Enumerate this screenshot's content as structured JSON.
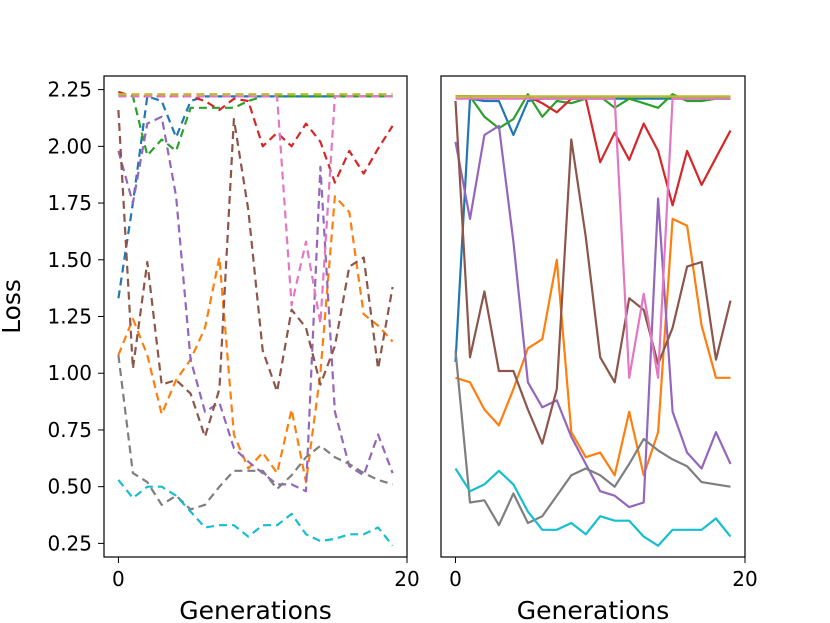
{
  "chart_data": {
    "type": "line",
    "ylabel": "Loss",
    "xlim": [
      -1,
      20
    ],
    "ylim": [
      0.19,
      2.31
    ],
    "yticks": [
      "0.25",
      "0.50",
      "0.75",
      "1.00",
      "1.25",
      "1.50",
      "1.75",
      "2.00",
      "2.25"
    ],
    "ytick_values": [
      0.25,
      0.5,
      0.75,
      1.0,
      1.25,
      1.5,
      1.75,
      2.0,
      2.25
    ],
    "xticks": [
      "0",
      "20"
    ],
    "xtick_values": [
      0,
      20
    ],
    "x": [
      0,
      1,
      2,
      3,
      4,
      5,
      6,
      7,
      8,
      9,
      10,
      11,
      12,
      13,
      14,
      15,
      16,
      17,
      18,
      19
    ],
    "panels": [
      {
        "xlabel": "Generations",
        "line_style": "dashed",
        "show_yticks": true,
        "series": [
          {
            "color": "#1f77b4",
            "values": [
              1.33,
              1.75,
              2.22,
              2.2,
              2.04,
              2.2,
              2.22,
              2.22,
              2.22,
              2.22,
              2.22,
              2.22,
              2.22,
              2.22,
              2.22,
              2.22,
              2.22,
              2.22,
              2.22,
              2.22
            ]
          },
          {
            "color": "#ff7f0e",
            "values": [
              1.08,
              1.24,
              1.08,
              0.82,
              0.97,
              1.06,
              1.2,
              1.51,
              0.73,
              0.58,
              0.65,
              0.56,
              0.84,
              0.52,
              1.0,
              1.78,
              1.71,
              1.26,
              1.21,
              1.14
            ]
          },
          {
            "color": "#2ca02c",
            "values": [
              2.23,
              2.22,
              1.96,
              2.03,
              1.98,
              2.17,
              2.17,
              2.17,
              2.17,
              2.2,
              2.22,
              2.22,
              2.22,
              2.22,
              2.22,
              2.22,
              2.22,
              2.22,
              2.22,
              2.22
            ]
          },
          {
            "color": "#d62728",
            "values": [
              2.24,
              2.22,
              2.22,
              2.22,
              2.22,
              2.22,
              2.2,
              2.16,
              2.21,
              2.2,
              2.0,
              2.06,
              2.0,
              2.1,
              2.02,
              1.84,
              1.98,
              1.88,
              1.99,
              2.09
            ]
          },
          {
            "color": "#9467bd",
            "values": [
              1.98,
              1.75,
              2.1,
              2.13,
              1.78,
              1.06,
              0.83,
              0.87,
              0.67,
              0.61,
              0.56,
              0.51,
              0.51,
              0.48,
              1.91,
              0.83,
              0.59,
              0.55,
              0.73,
              0.56
            ]
          },
          {
            "color": "#8c564b",
            "values": [
              2.16,
              1.02,
              1.49,
              0.95,
              0.97,
              0.91,
              0.72,
              0.93,
              2.12,
              1.72,
              1.1,
              0.92,
              1.28,
              1.2,
              0.95,
              1.12,
              1.47,
              1.51,
              1.02,
              1.38
            ]
          },
          {
            "color": "#e377c2",
            "values": [
              2.22,
              2.22,
              2.22,
              2.22,
              2.22,
              2.22,
              2.22,
              2.22,
              2.22,
              2.22,
              2.22,
              2.22,
              1.3,
              1.58,
              1.22,
              2.22,
              2.22,
              2.22,
              2.22,
              2.22
            ]
          },
          {
            "color": "#7f7f7f",
            "values": [
              1.08,
              0.56,
              0.52,
              0.42,
              0.46,
              0.4,
              0.42,
              0.5,
              0.57,
              0.57,
              0.57,
              0.49,
              0.55,
              0.63,
              0.68,
              0.63,
              0.6,
              0.56,
              0.53,
              0.51
            ]
          },
          {
            "color": "#bcbd22",
            "values": [
              2.23,
              2.23,
              2.23,
              2.23,
              2.23,
              2.23,
              2.23,
              2.23,
              2.23,
              2.23,
              2.23,
              2.23,
              2.23,
              2.23,
              2.23,
              2.23,
              2.23,
              2.23,
              2.23,
              2.23
            ]
          },
          {
            "color": "#17becf",
            "values": [
              0.53,
              0.45,
              0.5,
              0.5,
              0.46,
              0.39,
              0.32,
              0.33,
              0.33,
              0.28,
              0.33,
              0.33,
              0.38,
              0.29,
              0.26,
              0.27,
              0.29,
              0.29,
              0.32,
              0.24
            ]
          }
        ]
      },
      {
        "xlabel": "Generations",
        "line_style": "solid",
        "show_yticks": false,
        "series": [
          {
            "color": "#1f77b4",
            "values": [
              1.05,
              2.21,
              2.2,
              2.2,
              2.05,
              2.2,
              2.21,
              2.21,
              2.21,
              2.21,
              2.21,
              2.21,
              2.21,
              2.21,
              2.21,
              2.21,
              2.21,
              2.21,
              2.21,
              2.21
            ]
          },
          {
            "color": "#ff7f0e",
            "values": [
              0.98,
              0.96,
              0.84,
              0.77,
              0.93,
              1.11,
              1.15,
              1.5,
              0.74,
              0.63,
              0.65,
              0.55,
              0.83,
              0.55,
              0.74,
              1.68,
              1.65,
              1.21,
              0.98,
              0.98
            ]
          },
          {
            "color": "#2ca02c",
            "values": [
              2.22,
              2.22,
              2.13,
              2.08,
              2.12,
              2.23,
              2.13,
              2.2,
              2.19,
              2.21,
              2.22,
              2.17,
              2.21,
              2.19,
              2.17,
              2.23,
              2.2,
              2.2,
              2.21,
              2.21
            ]
          },
          {
            "color": "#d62728",
            "values": [
              2.22,
              2.22,
              2.22,
              2.22,
              2.22,
              2.22,
              2.19,
              2.15,
              2.21,
              2.21,
              1.93,
              2.06,
              1.94,
              2.1,
              1.98,
              1.74,
              1.98,
              1.83,
              1.95,
              2.07
            ]
          },
          {
            "color": "#9467bd",
            "values": [
              2.02,
              1.68,
              2.05,
              2.09,
              1.58,
              0.96,
              0.85,
              0.88,
              0.72,
              0.6,
              0.48,
              0.46,
              0.41,
              0.43,
              1.77,
              0.83,
              0.65,
              0.58,
              0.74,
              0.6
            ]
          },
          {
            "color": "#8c564b",
            "values": [
              2.2,
              1.07,
              1.36,
              1.01,
              1.01,
              0.84,
              0.69,
              0.93,
              2.03,
              1.6,
              1.07,
              0.96,
              1.33,
              1.28,
              1.04,
              1.2,
              1.47,
              1.49,
              1.06,
              1.32
            ]
          },
          {
            "color": "#e377c2",
            "values": [
              2.21,
              2.21,
              2.21,
              2.21,
              2.21,
              2.21,
              2.21,
              2.21,
              2.21,
              2.21,
              2.21,
              2.21,
              0.98,
              1.35,
              0.98,
              2.21,
              2.21,
              2.21,
              2.21,
              2.21
            ]
          },
          {
            "color": "#7f7f7f",
            "values": [
              1.1,
              0.43,
              0.44,
              0.33,
              0.47,
              0.34,
              0.37,
              0.46,
              0.55,
              0.58,
              0.55,
              0.5,
              0.6,
              0.71,
              0.66,
              0.62,
              0.59,
              0.52,
              0.51,
              0.5
            ]
          },
          {
            "color": "#bcbd22",
            "values": [
              2.22,
              2.22,
              2.22,
              2.22,
              2.22,
              2.22,
              2.22,
              2.22,
              2.22,
              2.22,
              2.22,
              2.22,
              2.22,
              2.22,
              2.22,
              2.22,
              2.22,
              2.22,
              2.22,
              2.22
            ]
          },
          {
            "color": "#17becf",
            "values": [
              0.58,
              0.48,
              0.51,
              0.57,
              0.51,
              0.39,
              0.31,
              0.31,
              0.34,
              0.29,
              0.37,
              0.35,
              0.35,
              0.28,
              0.24,
              0.31,
              0.31,
              0.31,
              0.36,
              0.28
            ]
          }
        ]
      }
    ]
  }
}
